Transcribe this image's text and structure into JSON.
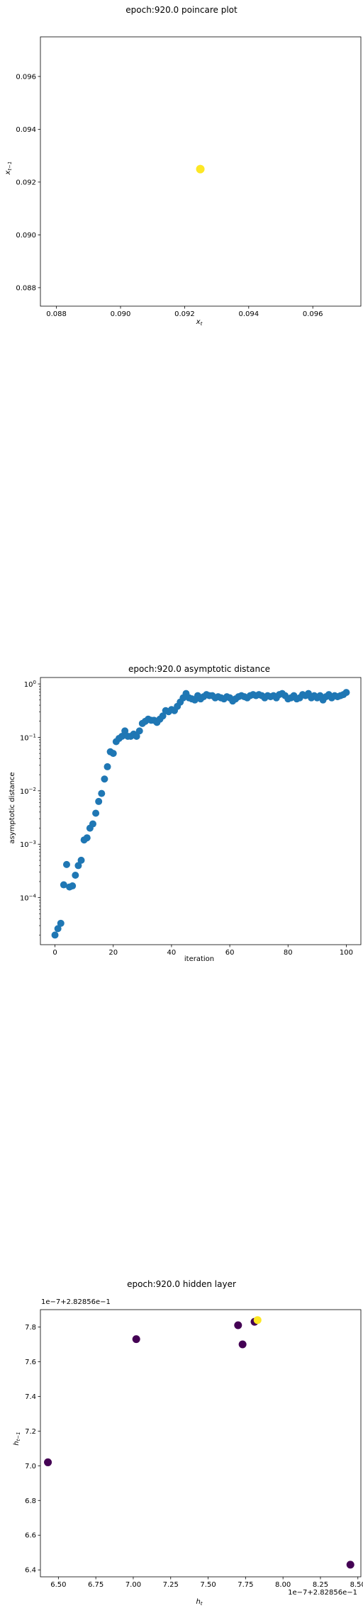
{
  "chart_data": [
    {
      "type": "scatter",
      "title": "epoch:920.0 poincare plot",
      "xlabel": "x_t",
      "ylabel": "x_{t-1}",
      "xlim": [
        0.0875,
        0.0975
      ],
      "ylim": [
        0.0873,
        0.0975
      ],
      "xticks": [
        0.088,
        0.09,
        0.092,
        0.094,
        0.096
      ],
      "yticks": [
        0.088,
        0.09,
        0.092,
        0.094,
        0.096
      ],
      "xtick_labels": [
        "0.088",
        "0.090",
        "0.092",
        "0.094",
        "0.096"
      ],
      "ytick_labels": [
        "0.088",
        "0.090",
        "0.092",
        "0.094",
        "0.096"
      ],
      "grid": false,
      "points": [
        {
          "x": 0.09249,
          "y": 0.09249,
          "color": "#fde725"
        }
      ]
    },
    {
      "type": "scatter",
      "title": "epoch:920.0 asymptotic distance",
      "xlabel": "iteration",
      "ylabel": "asymptotic distance",
      "yscale": "log",
      "xlim": [
        -5,
        105
      ],
      "ylim_log10": [
        -4.88,
        0.12
      ],
      "xticks": [
        0,
        20,
        40,
        60,
        80,
        100
      ],
      "xtick_labels": [
        "0",
        "20",
        "40",
        "60",
        "80",
        "100"
      ],
      "yticks": [
        -4,
        -3,
        -2,
        -1,
        0
      ],
      "ytick_labels": [
        [
          "10",
          "−4"
        ],
        [
          "10",
          "−3"
        ],
        [
          "10",
          "−2"
        ],
        [
          "10",
          "−1"
        ],
        [
          "10",
          "0"
        ]
      ],
      "grid": false,
      "color": "#1f77b4",
      "x": [
        0,
        1,
        2,
        3,
        4,
        5,
        6,
        7,
        8,
        9,
        10,
        11,
        12,
        13,
        14,
        15,
        16,
        17,
        18,
        19,
        20,
        21,
        22,
        23,
        24,
        25,
        26,
        27,
        28,
        29,
        30,
        31,
        32,
        33,
        34,
        35,
        36,
        37,
        38,
        39,
        40,
        41,
        42,
        43,
        44,
        45,
        46,
        47,
        48,
        49,
        50,
        51,
        52,
        53,
        54,
        55,
        56,
        57,
        58,
        59,
        60,
        61,
        62,
        63,
        64,
        65,
        66,
        67,
        68,
        69,
        70,
        71,
        72,
        73,
        74,
        75,
        76,
        77,
        78,
        79,
        80,
        81,
        82,
        83,
        84,
        85,
        86,
        87,
        88,
        89,
        90,
        91,
        92,
        93,
        94,
        95,
        96,
        97,
        98,
        99,
        100
      ],
      "log10_y": [
        -4.7,
        -4.58,
        -4.48,
        -3.76,
        -3.38,
        -3.8,
        -3.78,
        -3.58,
        -3.4,
        -3.3,
        -2.92,
        -2.88,
        -2.7,
        -2.62,
        -2.42,
        -2.2,
        -2.05,
        -1.78,
        -1.55,
        -1.27,
        -1.3,
        -1.08,
        -1.02,
        -0.98,
        -0.88,
        -0.98,
        -0.98,
        -0.94,
        -0.98,
        -0.88,
        -0.74,
        -0.7,
        -0.66,
        -0.68,
        -0.68,
        -0.72,
        -0.66,
        -0.6,
        -0.5,
        -0.52,
        -0.48,
        -0.5,
        -0.42,
        -0.34,
        -0.26,
        -0.18,
        -0.26,
        -0.28,
        -0.3,
        -0.22,
        -0.28,
        -0.24,
        -0.2,
        -0.22,
        -0.22,
        -0.26,
        -0.24,
        -0.26,
        -0.28,
        -0.24,
        -0.26,
        -0.32,
        -0.28,
        -0.24,
        -0.22,
        -0.24,
        -0.26,
        -0.22,
        -0.2,
        -0.22,
        -0.2,
        -0.22,
        -0.26,
        -0.22,
        -0.24,
        -0.22,
        -0.26,
        -0.2,
        -0.18,
        -0.22,
        -0.28,
        -0.26,
        -0.22,
        -0.28,
        -0.26,
        -0.2,
        -0.22,
        -0.18,
        -0.26,
        -0.22,
        -0.26,
        -0.22,
        -0.3,
        -0.24,
        -0.2,
        -0.26,
        -0.22,
        -0.24,
        -0.22,
        -0.2,
        -0.16
      ]
    },
    {
      "type": "scatter",
      "title": "epoch:920.0 hidden layer",
      "xlabel": "h_t",
      "ylabel": "h_{t-1}",
      "x_offset_label": "1e−7+2.82856e−1",
      "y_offset_label": "1e−7+2.82856e−1",
      "xlim": [
        6.38,
        8.52
      ],
      "ylim": [
        6.36,
        7.9
      ],
      "xticks": [
        6.5,
        6.75,
        7.0,
        7.25,
        7.5,
        7.75,
        8.0,
        8.25,
        8.5
      ],
      "xtick_labels": [
        "6.50",
        "6.75",
        "7.00",
        "7.25",
        "7.50",
        "7.75",
        "8.00",
        "8.25",
        "8.50"
      ],
      "yticks": [
        6.4,
        6.6,
        6.8,
        7.0,
        7.2,
        7.4,
        7.6,
        7.8
      ],
      "ytick_labels": [
        "6.4",
        "6.6",
        "6.8",
        "7.0",
        "7.2",
        "7.4",
        "7.6",
        "7.8"
      ],
      "grid": false,
      "points": [
        {
          "x": 6.43,
          "y": 7.02,
          "color": "#440154"
        },
        {
          "x": 7.02,
          "y": 7.73,
          "color": "#440154"
        },
        {
          "x": 7.7,
          "y": 7.81,
          "color": "#440154"
        },
        {
          "x": 7.73,
          "y": 7.7,
          "color": "#440154"
        },
        {
          "x": 7.81,
          "y": 7.83,
          "color": "#440154"
        },
        {
          "x": 8.45,
          "y": 6.43,
          "color": "#440154"
        },
        {
          "x": 7.83,
          "y": 7.84,
          "color": "#fde725"
        }
      ]
    }
  ]
}
